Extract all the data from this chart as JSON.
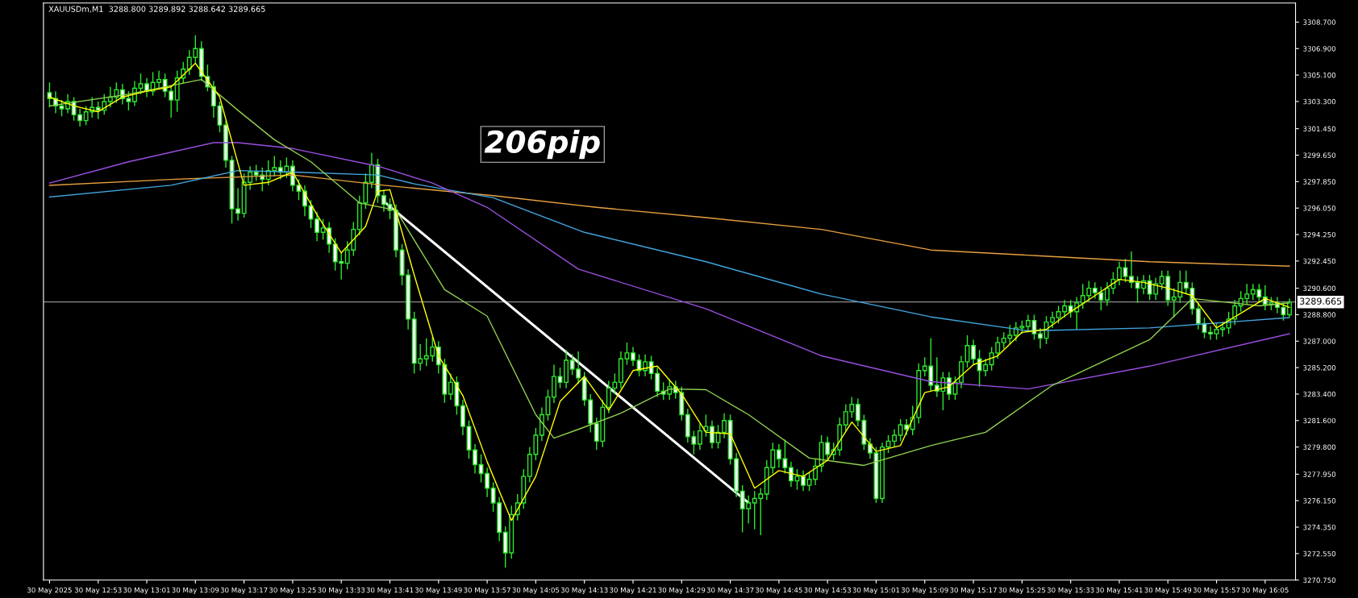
{
  "chart_data": {
    "type": "candlestick",
    "title": "XAUUSDm,M1  3288.800 3289.892 3288.642 3289.665",
    "color": "#2ee82e",
    "x": [
      "2025-05-30T12:45",
      "2025-05-30T12:46",
      "2025-05-30T12:47",
      "2025-05-30T12:48",
      "2025-05-30T12:49",
      "2025-05-30T12:50",
      "2025-05-30T12:51",
      "2025-05-30T12:52",
      "2025-05-30T12:53",
      "2025-05-30T12:54",
      "2025-05-30T12:55",
      "2025-05-30T12:56",
      "2025-05-30T12:57",
      "2025-05-30T12:58",
      "2025-05-30T12:59",
      "2025-05-30T13:00",
      "2025-05-30T13:01",
      "2025-05-30T13:02",
      "2025-05-30T13:03",
      "2025-05-30T13:04",
      "2025-05-30T13:05",
      "2025-05-30T13:06",
      "2025-05-30T13:07",
      "2025-05-30T13:08",
      "2025-05-30T13:09",
      "2025-05-30T13:10",
      "2025-05-30T13:11",
      "2025-05-30T13:12",
      "2025-05-30T13:13",
      "2025-05-30T13:14",
      "2025-05-30T13:15",
      "2025-05-30T13:16",
      "2025-05-30T13:17",
      "2025-05-30T13:18",
      "2025-05-30T13:19",
      "2025-05-30T13:20",
      "2025-05-30T13:21",
      "2025-05-30T13:22",
      "2025-05-30T13:23",
      "2025-05-30T13:24",
      "2025-05-30T13:25",
      "2025-05-30T13:26",
      "2025-05-30T13:27",
      "2025-05-30T13:28",
      "2025-05-30T13:29",
      "2025-05-30T13:30",
      "2025-05-30T13:31",
      "2025-05-30T13:32",
      "2025-05-30T13:33",
      "2025-05-30T13:34",
      "2025-05-30T13:35",
      "2025-05-30T13:36",
      "2025-05-30T13:37",
      "2025-05-30T13:38",
      "2025-05-30T13:39",
      "2025-05-30T13:40",
      "2025-05-30T13:41",
      "2025-05-30T13:42",
      "2025-05-30T13:43",
      "2025-05-30T13:44",
      "2025-05-30T13:45",
      "2025-05-30T13:46",
      "2025-05-30T13:47",
      "2025-05-30T13:48",
      "2025-05-30T13:49",
      "2025-05-30T13:50",
      "2025-05-30T13:51",
      "2025-05-30T13:52",
      "2025-05-30T13:53",
      "2025-05-30T13:54",
      "2025-05-30T13:55",
      "2025-05-30T13:56",
      "2025-05-30T13:57",
      "2025-05-30T13:58",
      "2025-05-30T13:59",
      "2025-05-30T14:00",
      "2025-05-30T14:01",
      "2025-05-30T14:02",
      "2025-05-30T14:03",
      "2025-05-30T14:04",
      "2025-05-30T14:05",
      "2025-05-30T14:06",
      "2025-05-30T14:07",
      "2025-05-30T14:08",
      "2025-05-30T14:09",
      "2025-05-30T14:10",
      "2025-05-30T14:11",
      "2025-05-30T14:12",
      "2025-05-30T14:13",
      "2025-05-30T14:14",
      "2025-05-30T14:15",
      "2025-05-30T14:16",
      "2025-05-30T14:17",
      "2025-05-30T14:18",
      "2025-05-30T14:19",
      "2025-05-30T14:20",
      "2025-05-30T14:21",
      "2025-05-30T14:22",
      "2025-05-30T14:23",
      "2025-05-30T14:24",
      "2025-05-30T14:25",
      "2025-05-30T14:26",
      "2025-05-30T14:27",
      "2025-05-30T14:28",
      "2025-05-30T14:29",
      "2025-05-30T14:30",
      "2025-05-30T14:31",
      "2025-05-30T14:32",
      "2025-05-30T14:33",
      "2025-05-30T14:34",
      "2025-05-30T14:35",
      "2025-05-30T14:36",
      "2025-05-30T14:37",
      "2025-05-30T14:38",
      "2025-05-30T14:39",
      "2025-05-30T14:40",
      "2025-05-30T14:41",
      "2025-05-30T14:42",
      "2025-05-30T14:43",
      "2025-05-30T14:44",
      "2025-05-30T14:45",
      "2025-05-30T14:46",
      "2025-05-30T14:47",
      "2025-05-30T14:48",
      "2025-05-30T14:49",
      "2025-05-30T14:50",
      "2025-05-30T14:51",
      "2025-05-30T14:52",
      "2025-05-30T14:53",
      "2025-05-30T14:54",
      "2025-05-30T14:55",
      "2025-05-30T14:56",
      "2025-05-30T14:57",
      "2025-05-30T14:58",
      "2025-05-30T14:59",
      "2025-05-30T15:00",
      "2025-05-30T15:01",
      "2025-05-30T15:02",
      "2025-05-30T15:03",
      "2025-05-30T15:04",
      "2025-05-30T15:05",
      "2025-05-30T15:06",
      "2025-05-30T15:07",
      "2025-05-30T15:08",
      "2025-05-30T15:09",
      "2025-05-30T15:10",
      "2025-05-30T15:11",
      "2025-05-30T15:12",
      "2025-05-30T15:13",
      "2025-05-30T15:14",
      "2025-05-30T15:15",
      "2025-05-30T15:16",
      "2025-05-30T15:17",
      "2025-05-30T15:18",
      "2025-05-30T15:19",
      "2025-05-30T15:20",
      "2025-05-30T15:21",
      "2025-05-30T15:22",
      "2025-05-30T15:23",
      "2025-05-30T15:24",
      "2025-05-30T15:25",
      "2025-05-30T15:26",
      "2025-05-30T15:27",
      "2025-05-30T15:28",
      "2025-05-30T15:29",
      "2025-05-30T15:30",
      "2025-05-30T15:31",
      "2025-05-30T15:32",
      "2025-05-30T15:33",
      "2025-05-30T15:34",
      "2025-05-30T15:35",
      "2025-05-30T15:36",
      "2025-05-30T15:37",
      "2025-05-30T15:38",
      "2025-05-30T15:39",
      "2025-05-30T15:40",
      "2025-05-30T15:41",
      "2025-05-30T15:42",
      "2025-05-30T15:43",
      "2025-05-30T15:44",
      "2025-05-30T15:45",
      "2025-05-30T15:46",
      "2025-05-30T15:47",
      "2025-05-30T15:48",
      "2025-05-30T15:49",
      "2025-05-30T15:50",
      "2025-05-30T15:51",
      "2025-05-30T15:52",
      "2025-05-30T15:53",
      "2025-05-30T15:54",
      "2025-05-30T15:55",
      "2025-05-30T15:56",
      "2025-05-30T15:57",
      "2025-05-30T15:58",
      "2025-05-30T15:59",
      "2025-05-30T16:00",
      "2025-05-30T16:01",
      "2025-05-30T16:02",
      "2025-05-30T16:03",
      "2025-05-30T16:04",
      "2025-05-30T16:05",
      "2025-05-30T16:06",
      "2025-05-30T16:07",
      "2025-05-30T16:08",
      "2025-05-30T16:09"
    ],
    "ohlc": [
      [
        3303.9,
        3304.6,
        3302.9,
        3303.5
      ],
      [
        3303.5,
        3304.0,
        3302.5,
        3303.0
      ],
      [
        3303.0,
        3303.4,
        3302.3,
        3302.8
      ],
      [
        3302.8,
        3303.8,
        3302.5,
        3303.3
      ],
      [
        3303.3,
        3303.6,
        3302.0,
        3302.4
      ],
      [
        3302.4,
        3302.8,
        3301.6,
        3302.0
      ],
      [
        3302.0,
        3303.0,
        3301.7,
        3302.6
      ],
      [
        3302.6,
        3303.6,
        3302.2,
        3302.9
      ],
      [
        3302.9,
        3303.3,
        3302.1,
        3302.7
      ],
      [
        3302.7,
        3303.8,
        3302.4,
        3303.3
      ],
      [
        3303.3,
        3304.3,
        3302.9,
        3303.6
      ],
      [
        3303.6,
        3304.6,
        3303.2,
        3304.1
      ],
      [
        3304.1,
        3304.5,
        3303.1,
        3303.5
      ],
      [
        3303.5,
        3304.0,
        3302.7,
        3303.3
      ],
      [
        3303.3,
        3304.7,
        3303.0,
        3304.2
      ],
      [
        3304.2,
        3305.2,
        3303.8,
        3304.5
      ],
      [
        3304.5,
        3304.9,
        3303.6,
        3304.0
      ],
      [
        3304.0,
        3305.3,
        3303.7,
        3304.6
      ],
      [
        3304.6,
        3305.4,
        3304.2,
        3304.8
      ],
      [
        3304.8,
        3305.2,
        3303.6,
        3304.0
      ],
      [
        3304.0,
        3304.4,
        3302.2,
        3303.4
      ],
      [
        3303.4,
        3305.4,
        3302.6,
        3304.9
      ],
      [
        3304.9,
        3306.0,
        3304.5,
        3305.5
      ],
      [
        3305.5,
        3306.8,
        3305.1,
        3306.3
      ],
      [
        3306.3,
        3307.8,
        3305.9,
        3306.9
      ],
      [
        3306.9,
        3307.4,
        3304.7,
        3305.0
      ],
      [
        3305.0,
        3305.8,
        3304.0,
        3304.3
      ],
      [
        3304.3,
        3304.7,
        3302.2,
        3303.0
      ],
      [
        3303.0,
        3303.3,
        3301.2,
        3301.7
      ],
      [
        3301.7,
        3302.0,
        3298.8,
        3299.3
      ],
      [
        3299.3,
        3299.6,
        3295.0,
        3296.0
      ],
      [
        3296.0,
        3297.4,
        3295.2,
        3295.7
      ],
      [
        3295.7,
        3298.4,
        3295.4,
        3297.8
      ],
      [
        3297.8,
        3298.9,
        3297.3,
        3298.5
      ],
      [
        3298.5,
        3299.0,
        3297.9,
        3298.3
      ],
      [
        3298.3,
        3298.8,
        3297.2,
        3298.0
      ],
      [
        3298.0,
        3299.3,
        3297.6,
        3298.6
      ],
      [
        3298.6,
        3299.6,
        3298.2,
        3298.8
      ],
      [
        3298.8,
        3299.3,
        3298.0,
        3298.5
      ],
      [
        3298.5,
        3299.5,
        3298.1,
        3298.9
      ],
      [
        3298.9,
        3299.3,
        3297.2,
        3297.6
      ],
      [
        3297.6,
        3298.0,
        3296.6,
        3297.2
      ],
      [
        3297.2,
        3297.6,
        3295.5,
        3296.2
      ],
      [
        3296.2,
        3296.6,
        3294.7,
        3295.3
      ],
      [
        3295.3,
        3295.8,
        3293.8,
        3294.4
      ],
      [
        3294.4,
        3295.3,
        3293.9,
        3294.7
      ],
      [
        3294.7,
        3295.1,
        3293.0,
        3293.6
      ],
      [
        3293.6,
        3294.0,
        3291.8,
        3292.4
      ],
      [
        3292.4,
        3293.0,
        3291.2,
        3292.3
      ],
      [
        3292.3,
        3293.8,
        3291.9,
        3293.2
      ],
      [
        3293.2,
        3295.1,
        3292.8,
        3294.6
      ],
      [
        3294.6,
        3296.9,
        3294.2,
        3296.4
      ],
      [
        3296.4,
        3298.4,
        3296.0,
        3297.8
      ],
      [
        3297.8,
        3299.8,
        3297.4,
        3299.0
      ],
      [
        3299.0,
        3299.4,
        3296.4,
        3296.9
      ],
      [
        3296.9,
        3297.3,
        3295.8,
        3296.3
      ],
      [
        3296.3,
        3296.7,
        3295.3,
        3295.9
      ],
      [
        3295.9,
        3296.3,
        3292.7,
        3293.2
      ],
      [
        3293.2,
        3293.6,
        3290.8,
        3291.5
      ],
      [
        3291.5,
        3291.9,
        3287.8,
        3288.5
      ],
      [
        3288.5,
        3289.0,
        3284.8,
        3285.5
      ],
      [
        3285.5,
        3286.8,
        3285.0,
        3285.8
      ],
      [
        3285.8,
        3287.2,
        3285.3,
        3286.0
      ],
      [
        3286.0,
        3287.3,
        3285.6,
        3286.6
      ],
      [
        3286.6,
        3287.0,
        3284.8,
        3285.4
      ],
      [
        3285.4,
        3285.8,
        3282.8,
        3283.4
      ],
      [
        3283.4,
        3284.8,
        3283.0,
        3284.2
      ],
      [
        3284.2,
        3284.6,
        3282.0,
        3282.6
      ],
      [
        3282.6,
        3283.0,
        3280.6,
        3281.2
      ],
      [
        3281.2,
        3281.6,
        3279.0,
        3279.6
      ],
      [
        3279.6,
        3280.0,
        3278.0,
        3278.6
      ],
      [
        3278.6,
        3279.3,
        3277.4,
        3278.0
      ],
      [
        3278.0,
        3278.4,
        3276.4,
        3277.0
      ],
      [
        3277.0,
        3277.4,
        3275.4,
        3276.0
      ],
      [
        3276.0,
        3276.4,
        3273.4,
        3274.0
      ],
      [
        3274.0,
        3274.4,
        3271.6,
        3272.6
      ],
      [
        3272.6,
        3275.8,
        3272.2,
        3275.2
      ],
      [
        3275.2,
        3276.6,
        3274.8,
        3276.0
      ],
      [
        3276.0,
        3278.3,
        3275.6,
        3277.8
      ],
      [
        3277.8,
        3279.8,
        3277.4,
        3279.3
      ],
      [
        3279.3,
        3281.1,
        3278.9,
        3280.6
      ],
      [
        3280.6,
        3282.5,
        3280.2,
        3282.0
      ],
      [
        3282.0,
        3283.7,
        3281.6,
        3283.2
      ],
      [
        3283.2,
        3285.4,
        3282.8,
        3284.6
      ],
      [
        3284.6,
        3285.2,
        3283.8,
        3284.2
      ],
      [
        3284.2,
        3286.4,
        3283.8,
        3285.7
      ],
      [
        3285.7,
        3286.1,
        3284.7,
        3285.1
      ],
      [
        3285.1,
        3286.3,
        3284.1,
        3284.5
      ],
      [
        3284.5,
        3284.9,
        3282.6,
        3283.0
      ],
      [
        3283.0,
        3283.4,
        3280.8,
        3281.4
      ],
      [
        3281.4,
        3281.8,
        3279.6,
        3280.2
      ],
      [
        3280.2,
        3283.0,
        3279.8,
        3282.5
      ],
      [
        3282.5,
        3284.3,
        3282.1,
        3283.8
      ],
      [
        3283.8,
        3284.8,
        3283.4,
        3284.2
      ],
      [
        3284.2,
        3286.3,
        3283.8,
        3285.8
      ],
      [
        3285.8,
        3286.9,
        3285.4,
        3286.2
      ],
      [
        3286.2,
        3286.6,
        3285.3,
        3285.7
      ],
      [
        3285.7,
        3286.1,
        3284.6,
        3285.0
      ],
      [
        3285.0,
        3286.1,
        3284.6,
        3285.6
      ],
      [
        3285.6,
        3286.0,
        3284.4,
        3284.8
      ],
      [
        3284.8,
        3285.2,
        3283.2,
        3283.6
      ],
      [
        3283.6,
        3284.2,
        3283.0,
        3283.4
      ],
      [
        3283.4,
        3284.4,
        3283.0,
        3283.9
      ],
      [
        3283.9,
        3284.3,
        3283.1,
        3283.5
      ],
      [
        3283.5,
        3283.9,
        3281.6,
        3282.0
      ],
      [
        3282.0,
        3282.4,
        3280.1,
        3280.5
      ],
      [
        3280.5,
        3280.9,
        3279.3,
        3280.0
      ],
      [
        3280.0,
        3281.4,
        3279.6,
        3280.9
      ],
      [
        3280.9,
        3282.0,
        3280.5,
        3281.2
      ],
      [
        3281.2,
        3281.6,
        3279.7,
        3280.1
      ],
      [
        3280.1,
        3281.3,
        3279.7,
        3280.8
      ],
      [
        3280.8,
        3282.1,
        3280.4,
        3281.6
      ],
      [
        3281.6,
        3282.0,
        3278.6,
        3279.0
      ],
      [
        3279.0,
        3279.4,
        3276.4,
        3276.8
      ],
      [
        3276.8,
        3277.2,
        3274.0,
        3275.6
      ],
      [
        3275.6,
        3276.5,
        3274.6,
        3276.0
      ],
      [
        3276.0,
        3276.8,
        3274.2,
        3276.3
      ],
      [
        3276.3,
        3277.0,
        3273.8,
        3276.6
      ],
      [
        3276.6,
        3278.9,
        3276.2,
        3278.4
      ],
      [
        3278.4,
        3280.1,
        3278.0,
        3279.6
      ],
      [
        3279.6,
        3280.0,
        3278.4,
        3279.0
      ],
      [
        3279.0,
        3280.3,
        3278.0,
        3278.4
      ],
      [
        3278.4,
        3278.8,
        3277.1,
        3277.5
      ],
      [
        3277.5,
        3278.3,
        3276.9,
        3277.8
      ],
      [
        3277.8,
        3278.2,
        3276.8,
        3277.2
      ],
      [
        3277.2,
        3278.1,
        3276.8,
        3277.6
      ],
      [
        3277.6,
        3279.0,
        3277.2,
        3278.5
      ],
      [
        3278.5,
        3280.6,
        3278.1,
        3280.1
      ],
      [
        3280.1,
        3280.5,
        3278.9,
        3279.3
      ],
      [
        3279.3,
        3280.1,
        3278.9,
        3279.6
      ],
      [
        3279.6,
        3281.8,
        3279.2,
        3281.3
      ],
      [
        3281.3,
        3282.7,
        3280.9,
        3282.2
      ],
      [
        3282.2,
        3283.2,
        3281.8,
        3282.7
      ],
      [
        3282.7,
        3283.1,
        3281.2,
        3281.6
      ],
      [
        3281.6,
        3282.0,
        3279.6,
        3280.0
      ],
      [
        3280.0,
        3280.4,
        3279.0,
        3279.4
      ],
      [
        3279.4,
        3279.8,
        3276.0,
        3276.3
      ],
      [
        3276.3,
        3280.1,
        3276.0,
        3279.8
      ],
      [
        3279.8,
        3280.6,
        3279.4,
        3280.2
      ],
      [
        3280.2,
        3281.0,
        3279.8,
        3280.6
      ],
      [
        3280.6,
        3281.7,
        3280.2,
        3281.3
      ],
      [
        3281.3,
        3281.7,
        3280.6,
        3281.0
      ],
      [
        3281.0,
        3282.6,
        3280.6,
        3281.8
      ],
      [
        3281.8,
        3285.5,
        3281.4,
        3285.0
      ],
      [
        3285.0,
        3285.9,
        3284.6,
        3285.3
      ],
      [
        3285.3,
        3287.2,
        3283.6,
        3284.0
      ],
      [
        3284.0,
        3285.9,
        3283.2,
        3283.6
      ],
      [
        3283.6,
        3284.9,
        3282.3,
        3284.5
      ],
      [
        3284.5,
        3284.9,
        3283.0,
        3283.4
      ],
      [
        3283.4,
        3284.6,
        3283.0,
        3284.2
      ],
      [
        3284.2,
        3286.0,
        3283.8,
        3285.6
      ],
      [
        3285.6,
        3287.4,
        3285.2,
        3286.7
      ],
      [
        3286.7,
        3287.1,
        3285.4,
        3285.8
      ],
      [
        3285.8,
        3286.4,
        3283.9,
        3285.0
      ],
      [
        3285.0,
        3285.8,
        3284.6,
        3285.4
      ],
      [
        3285.4,
        3286.6,
        3285.0,
        3286.2
      ],
      [
        3286.2,
        3287.3,
        3285.8,
        3286.9
      ],
      [
        3286.9,
        3287.6,
        3286.5,
        3287.2
      ],
      [
        3287.2,
        3288.1,
        3286.8,
        3287.4
      ],
      [
        3287.4,
        3288.3,
        3287.0,
        3287.9
      ],
      [
        3287.9,
        3288.4,
        3287.5,
        3288.0
      ],
      [
        3288.0,
        3288.8,
        3287.6,
        3288.4
      ],
      [
        3288.4,
        3288.8,
        3287.1,
        3287.5
      ],
      [
        3287.5,
        3287.9,
        3286.5,
        3287.2
      ],
      [
        3287.2,
        3288.7,
        3286.8,
        3288.3
      ],
      [
        3288.3,
        3289.0,
        3287.9,
        3288.6
      ],
      [
        3288.6,
        3289.4,
        3288.2,
        3289.0
      ],
      [
        3289.0,
        3289.8,
        3288.6,
        3289.4
      ],
      [
        3289.4,
        3289.8,
        3288.6,
        3289.0
      ],
      [
        3289.0,
        3290.0,
        3287.8,
        3289.6
      ],
      [
        3289.6,
        3290.9,
        3289.2,
        3290.1
      ],
      [
        3290.1,
        3291.1,
        3289.7,
        3290.6
      ],
      [
        3290.6,
        3291.0,
        3289.9,
        3290.3
      ],
      [
        3290.3,
        3290.7,
        3289.1,
        3289.8
      ],
      [
        3289.8,
        3291.0,
        3289.4,
        3290.6
      ],
      [
        3290.6,
        3291.7,
        3290.2,
        3291.2
      ],
      [
        3291.2,
        3292.4,
        3290.8,
        3292.0
      ],
      [
        3292.0,
        3292.6,
        3291.0,
        3291.4
      ],
      [
        3291.4,
        3293.1,
        3290.6,
        3291.0
      ],
      [
        3291.0,
        3291.4,
        3289.6,
        3290.6
      ],
      [
        3290.6,
        3291.5,
        3290.2,
        3291.1
      ],
      [
        3291.1,
        3291.5,
        3289.8,
        3290.2
      ],
      [
        3290.2,
        3291.3,
        3289.8,
        3290.9
      ],
      [
        3290.9,
        3291.8,
        3290.5,
        3291.4
      ],
      [
        3291.4,
        3291.8,
        3289.4,
        3289.8
      ],
      [
        3289.8,
        3290.6,
        3288.6,
        3290.0
      ],
      [
        3290.0,
        3291.8,
        3289.6,
        3291.0
      ],
      [
        3291.0,
        3291.8,
        3290.2,
        3290.6
      ],
      [
        3290.6,
        3291.0,
        3288.8,
        3289.2
      ],
      [
        3289.2,
        3289.6,
        3287.8,
        3288.2
      ],
      [
        3288.2,
        3288.6,
        3287.2,
        3287.6
      ],
      [
        3287.6,
        3288.0,
        3287.1,
        3287.5
      ],
      [
        3287.5,
        3288.2,
        3287.1,
        3287.8
      ],
      [
        3287.8,
        3288.3,
        3287.3,
        3287.9
      ],
      [
        3287.9,
        3289.0,
        3287.5,
        3288.5
      ],
      [
        3288.5,
        3289.8,
        3288.1,
        3289.4
      ],
      [
        3289.4,
        3290.4,
        3289.0,
        3289.9
      ],
      [
        3289.9,
        3290.9,
        3289.5,
        3290.2
      ],
      [
        3290.2,
        3290.9,
        3289.8,
        3290.5
      ],
      [
        3290.5,
        3290.9,
        3289.6,
        3290.0
      ],
      [
        3290.0,
        3290.8,
        3289.1,
        3289.5
      ],
      [
        3289.5,
        3290.0,
        3289.1,
        3289.6
      ],
      [
        3289.6,
        3290.0,
        3288.9,
        3289.3
      ],
      [
        3289.3,
        3289.7,
        3288.4,
        3288.8
      ],
      [
        3288.8,
        3289.892,
        3288.642,
        3289.665
      ]
    ],
    "series": [
      {
        "type": "line",
        "color": "#e8a040",
        "x": [
          "2025-05-30T12:45",
          "2025-05-30T13:05",
          "2025-05-30T13:25",
          "2025-05-30T13:40",
          "2025-05-30T13:58",
          "2025-05-30T14:15",
          "2025-05-30T14:33",
          "2025-05-30T14:52",
          "2025-05-30T15:10",
          "2025-05-30T15:28",
          "2025-05-30T15:46",
          "2025-05-30T16:09"
        ],
        "values": [
          3297.6,
          3298.0,
          3298.3,
          3297.6,
          3296.9,
          3296.1,
          3295.4,
          3294.6,
          3293.2,
          3292.8,
          3292.4,
          3292.1
        ]
      },
      {
        "type": "line",
        "color": "#41a6e0",
        "x": [
          "2025-05-30T12:45",
          "2025-05-30T13:05",
          "2025-05-30T13:16",
          "2025-05-30T13:25",
          "2025-05-30T13:39",
          "2025-05-30T13:45",
          "2025-05-30T13:58",
          "2025-05-30T14:13",
          "2025-05-30T14:33",
          "2025-05-30T14:52",
          "2025-05-30T15:10",
          "2025-05-30T15:26",
          "2025-05-30T15:46",
          "2025-05-30T16:09"
        ],
        "values": [
          3296.8,
          3297.6,
          3298.6,
          3298.5,
          3298.3,
          3297.7,
          3296.75,
          3294.4,
          3292.4,
          3290.2,
          3288.65,
          3287.7,
          3287.9,
          3288.6
        ]
      },
      {
        "type": "line",
        "color": "#9a4fe0",
        "x": [
          "2025-05-30T12:45",
          "2025-05-30T12:58",
          "2025-05-30T13:12",
          "2025-05-30T13:16",
          "2025-05-30T13:25",
          "2025-05-30T13:39",
          "2025-05-30T13:48",
          "2025-05-30T13:57",
          "2025-05-30T14:12",
          "2025-05-30T14:33",
          "2025-05-30T14:52",
          "2025-05-30T15:10",
          "2025-05-30T15:26",
          "2025-05-30T15:46",
          "2025-05-30T16:09"
        ],
        "values": [
          3297.75,
          3299.2,
          3300.5,
          3300.5,
          3300.1,
          3298.9,
          3297.75,
          3296.1,
          3291.9,
          3289.2,
          3286.0,
          3284.25,
          3283.75,
          3285.3,
          3287.5
        ]
      },
      {
        "type": "line",
        "color": "#8fd14f",
        "x": [
          "2025-05-30T12:45",
          "2025-05-30T12:58",
          "2025-05-30T13:10",
          "2025-05-30T13:16",
          "2025-05-30T13:22",
          "2025-05-30T13:28",
          "2025-05-30T13:36",
          "2025-05-30T13:42",
          "2025-05-30T13:50",
          "2025-05-30T13:57",
          "2025-05-30T14:05",
          "2025-05-30T14:08",
          "2025-05-30T14:12",
          "2025-05-30T14:19",
          "2025-05-30T14:27",
          "2025-05-30T14:33",
          "2025-05-30T14:40",
          "2025-05-30T14:50",
          "2025-05-30T14:59",
          "2025-05-30T15:10",
          "2025-05-30T15:19",
          "2025-05-30T15:30",
          "2025-05-30T15:46",
          "2025-05-30T15:53",
          "2025-05-30T16:04",
          "2025-05-30T16:09"
        ],
        "values": [
          3303.0,
          3303.8,
          3304.8,
          3302.7,
          3300.7,
          3299.2,
          3296.4,
          3295.9,
          3290.5,
          3288.7,
          3282.0,
          3280.4,
          3281.0,
          3282.1,
          3283.75,
          3283.7,
          3282.0,
          3279.05,
          3278.55,
          3279.9,
          3280.8,
          3284.0,
          3287.1,
          3289.9,
          3289.4,
          3289.6
        ]
      },
      {
        "type": "line",
        "color": "#ffff00",
        "x": [
          "2025-05-30T12:45",
          "2025-05-30T12:49",
          "2025-05-30T12:53",
          "2025-05-30T12:57",
          "2025-05-30T13:01",
          "2025-05-30T13:05",
          "2025-05-30T13:09",
          "2025-05-30T13:13",
          "2025-05-30T13:17",
          "2025-05-30T13:21",
          "2025-05-30T13:25",
          "2025-05-30T13:29",
          "2025-05-30T13:33",
          "2025-05-30T13:37",
          "2025-05-30T13:39",
          "2025-05-30T13:41",
          "2025-05-30T13:45",
          "2025-05-30T13:49",
          "2025-05-30T13:53",
          "2025-05-30T13:57",
          "2025-05-30T14:01",
          "2025-05-30T14:05",
          "2025-05-30T14:09",
          "2025-05-30T14:13",
          "2025-05-30T14:17",
          "2025-05-30T14:21",
          "2025-05-30T14:25",
          "2025-05-30T14:29",
          "2025-05-30T14:33",
          "2025-05-30T14:37",
          "2025-05-30T14:41",
          "2025-05-30T14:45",
          "2025-05-30T14:49",
          "2025-05-30T14:53",
          "2025-05-30T14:57",
          "2025-05-30T15:01",
          "2025-05-30T15:05",
          "2025-05-30T15:09",
          "2025-05-30T15:13",
          "2025-05-30T15:17",
          "2025-05-30T15:21",
          "2025-05-30T15:25",
          "2025-05-30T15:29",
          "2025-05-30T15:33",
          "2025-05-30T15:37",
          "2025-05-30T15:41",
          "2025-05-30T15:45",
          "2025-05-30T15:49",
          "2025-05-30T15:53",
          "2025-05-30T15:57",
          "2025-05-30T16:01",
          "2025-05-30T16:05",
          "2025-05-30T16:09"
        ],
        "values": [
          3303.6,
          3303.0,
          3302.6,
          3303.6,
          3304.0,
          3304.3,
          3305.9,
          3303.6,
          3297.6,
          3297.8,
          3298.5,
          3295.6,
          3293.0,
          3294.8,
          3297.2,
          3297.3,
          3291.5,
          3286.0,
          3283.3,
          3278.8,
          3274.8,
          3277.8,
          3282.9,
          3284.6,
          3282.3,
          3285.0,
          3285.3,
          3283.4,
          3280.8,
          3280.7,
          3277.0,
          3278.2,
          3277.8,
          3278.9,
          3281.5,
          3279.5,
          3279.9,
          3283.5,
          3283.9,
          3285.4,
          3286.0,
          3287.6,
          3287.8,
          3289.0,
          3290.1,
          3291.2,
          3291.0,
          3290.6,
          3290.1,
          3287.9,
          3288.9,
          3289.9,
          3289.3
        ]
      },
      {
        "type": "line",
        "color": "#ffffff",
        "x": [
          "2025-05-30T13:40",
          "2025-05-30T14:40"
        ],
        "values": [
          3296.5,
          3276.0
        ]
      }
    ],
    "ref_lines": [
      {
        "axis": "y",
        "value": 3289.665,
        "label": "3289.665",
        "color": "#8c8c8c"
      }
    ],
    "annotations": [
      "206pip"
    ],
    "xlim": [
      "2025-05-30T12:44",
      "2025-05-30T16:10"
    ],
    "xticks": [
      {
        "value": "2025-05-30T12:45",
        "label": "30 May 2025"
      },
      {
        "value": "2025-05-30T12:53",
        "label": "30 May 12:53"
      },
      {
        "value": "2025-05-30T13:01",
        "label": "30 May 13:01"
      },
      {
        "value": "2025-05-30T13:09",
        "label": "30 May 13:09"
      },
      {
        "value": "2025-05-30T13:17",
        "label": "30 May 13:17"
      },
      {
        "value": "2025-05-30T13:25",
        "label": "30 May 13:25"
      },
      {
        "value": "2025-05-30T13:33",
        "label": "30 May 13:33"
      },
      {
        "value": "2025-05-30T13:41",
        "label": "30 May 13:41"
      },
      {
        "value": "2025-05-30T13:49",
        "label": "30 May 13:49"
      },
      {
        "value": "2025-05-30T13:57",
        "label": "30 May 13:57"
      },
      {
        "value": "2025-05-30T14:05",
        "label": "30 May 14:05"
      },
      {
        "value": "2025-05-30T14:13",
        "label": "30 May 14:13"
      },
      {
        "value": "2025-05-30T14:21",
        "label": "30 May 14:21"
      },
      {
        "value": "2025-05-30T14:29",
        "label": "30 May 14:29"
      },
      {
        "value": "2025-05-30T14:37",
        "label": "30 May 14:37"
      },
      {
        "value": "2025-05-30T14:45",
        "label": "30 May 14:45"
      },
      {
        "value": "2025-05-30T14:53",
        "label": "30 May 14:53"
      },
      {
        "value": "2025-05-30T15:01",
        "label": "30 May 15:01"
      },
      {
        "value": "2025-05-30T15:09",
        "label": "30 May 15:09"
      },
      {
        "value": "2025-05-30T15:17",
        "label": "30 May 15:17"
      },
      {
        "value": "2025-05-30T15:25",
        "label": "30 May 15:25"
      },
      {
        "value": "2025-05-30T15:33",
        "label": "30 May 15:33"
      },
      {
        "value": "2025-05-30T15:41",
        "label": "30 May 15:41"
      },
      {
        "value": "2025-05-30T15:49",
        "label": "30 May 15:49"
      },
      {
        "value": "2025-05-30T15:57",
        "label": "30 May 15:57"
      },
      {
        "value": "2025-05-30T16:05",
        "label": "30 May 16:05"
      }
    ],
    "ylim": [
      3270.75,
      3310.0
    ],
    "yticks": [
      {
        "value": 3270.75,
        "label": "3270.750"
      },
      {
        "value": 3272.55,
        "label": "3272.550"
      },
      {
        "value": 3274.35,
        "label": "3274.350"
      },
      {
        "value": 3276.15,
        "label": "3276.150"
      },
      {
        "value": 3277.95,
        "label": "3277.950"
      },
      {
        "value": 3279.8,
        "label": "3279.800"
      },
      {
        "value": 3281.6,
        "label": "3281.600"
      },
      {
        "value": 3283.4,
        "label": "3283.400"
      },
      {
        "value": 3285.2,
        "label": "3285.200"
      },
      {
        "value": 3287.0,
        "label": "3287.000"
      },
      {
        "value": 3288.8,
        "label": "3288.800"
      },
      {
        "value": 3290.6,
        "label": "3290.600"
      },
      {
        "value": 3292.45,
        "label": "3292.450"
      },
      {
        "value": 3294.25,
        "label": "3294.250"
      },
      {
        "value": 3296.05,
        "label": "3296.050"
      },
      {
        "value": 3297.85,
        "label": "3297.850"
      },
      {
        "value": 3299.65,
        "label": "3299.650"
      },
      {
        "value": 3301.45,
        "label": "3301.450"
      },
      {
        "value": 3303.3,
        "label": "3303.300"
      },
      {
        "value": 3305.1,
        "label": "3305.100"
      },
      {
        "value": 3306.9,
        "label": "3306.900"
      },
      {
        "value": 3308.7,
        "label": "3308.700"
      }
    ]
  }
}
